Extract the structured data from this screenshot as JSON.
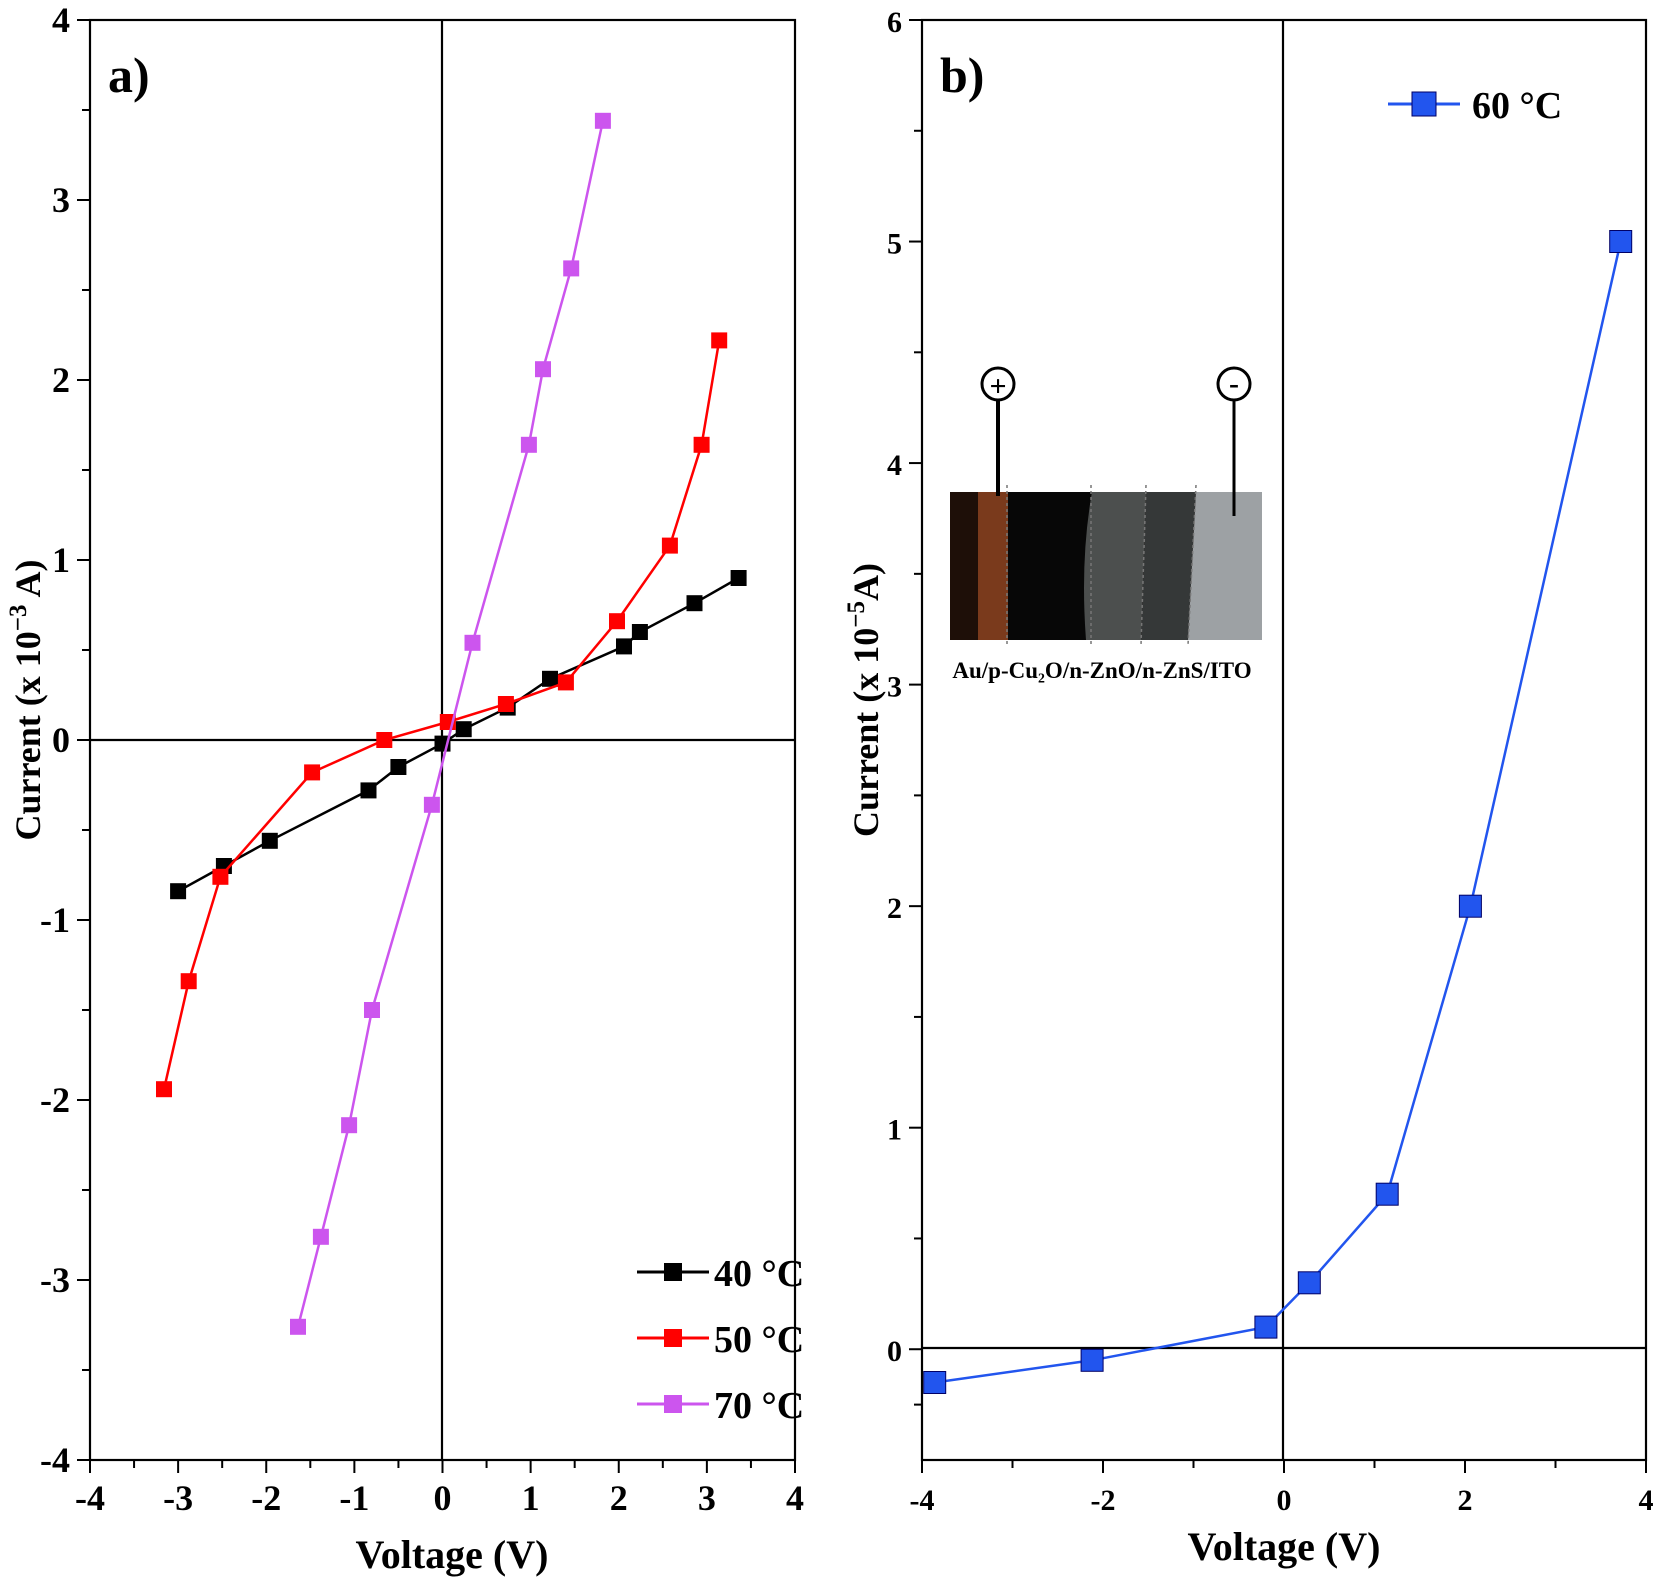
{
  "chart_data": [
    {
      "type": "line",
      "panel_label": "a)",
      "xlabel": "Voltage (V)",
      "ylabel": "Current  (x 10",
      "ylabel_exp": "−3",
      "ylabel_unit": " A)",
      "xlim": [
        -4,
        4
      ],
      "ylim": [
        -4,
        4
      ],
      "xticks": [
        -4,
        -3,
        -2,
        -1,
        0,
        1,
        2,
        3,
        4
      ],
      "yticks": [
        -4,
        -3,
        -2,
        -1,
        0,
        1,
        2,
        3,
        4
      ],
      "xtick_labels": [
        "-4",
        "-3",
        "-2",
        "-1",
        "0",
        "1",
        "2",
        "3",
        "4"
      ],
      "ytick_labels": [
        "-4",
        "-3",
        "-2",
        "-1",
        "0",
        "1",
        "2",
        "3",
        "4"
      ],
      "legend_position": "bottom-right",
      "series": [
        {
          "name": "40 °C",
          "color": "#000000",
          "x": [
            -3.0,
            -2.48,
            -1.96,
            -0.84,
            -0.5,
            0.0,
            0.24,
            0.74,
            1.22,
            2.06,
            2.24,
            2.86,
            3.36
          ],
          "y": [
            -0.84,
            -0.7,
            -0.56,
            -0.28,
            -0.15,
            -0.02,
            0.06,
            0.18,
            0.34,
            0.52,
            0.6,
            0.76,
            0.9
          ]
        },
        {
          "name": "50 °C",
          "color": "#ff0000",
          "x": [
            -3.16,
            -2.88,
            -2.52,
            -1.48,
            -0.66,
            0.06,
            0.72,
            1.4,
            1.98,
            2.58,
            2.94,
            3.14
          ],
          "y": [
            -1.94,
            -1.34,
            -0.76,
            -0.18,
            0.0,
            0.1,
            0.2,
            0.32,
            0.66,
            1.08,
            1.64,
            2.22
          ]
        },
        {
          "name": "70 °C",
          "color": "#cc55ee",
          "x": [
            -1.64,
            -1.38,
            -1.06,
            -0.8,
            -0.12,
            0.34,
            0.98,
            1.14,
            1.46,
            1.82
          ],
          "y": [
            -3.26,
            -2.76,
            -2.14,
            -1.5,
            -0.36,
            0.54,
            1.64,
            2.06,
            2.62,
            3.44
          ]
        }
      ]
    },
    {
      "type": "line",
      "panel_label": "b)",
      "xlabel": "Voltage (V)",
      "ylabel": "Current  (x 10",
      "ylabel_exp": "−5",
      "ylabel_unit": "A)",
      "xlim": [
        -4,
        4
      ],
      "ylim": [
        -0.5,
        6
      ],
      "xticks": [
        -4,
        -2,
        0,
        2,
        4
      ],
      "yticks": [
        0,
        1,
        2,
        3,
        4,
        5,
        6
      ],
      "xtick_labels": [
        "-4",
        "-2",
        "0",
        "2",
        "4"
      ],
      "ytick_labels": [
        "0",
        "1",
        "2",
        "3",
        "4",
        "5",
        "6"
      ],
      "legend_position": "top-right",
      "series": [
        {
          "name": "60 °C",
          "color": "#2255ee",
          "x": [
            -3.86,
            -2.12,
            -0.2,
            0.28,
            1.14,
            2.06,
            3.72
          ],
          "y": [
            -0.15,
            -0.05,
            0.1,
            0.3,
            0.7,
            2.0,
            5.0
          ]
        }
      ],
      "inset": {
        "caption": "Au/p-Cu₂O/n-ZnO/n-ZnS/ITO",
        "plus_label": "+",
        "minus_label": "-",
        "layer_colors": [
          "#1e0f08",
          "#7a3a1c",
          "#070707",
          "#0b0b0b",
          "#4c4f4e",
          "#353838",
          "#9da1a4"
        ]
      }
    }
  ]
}
